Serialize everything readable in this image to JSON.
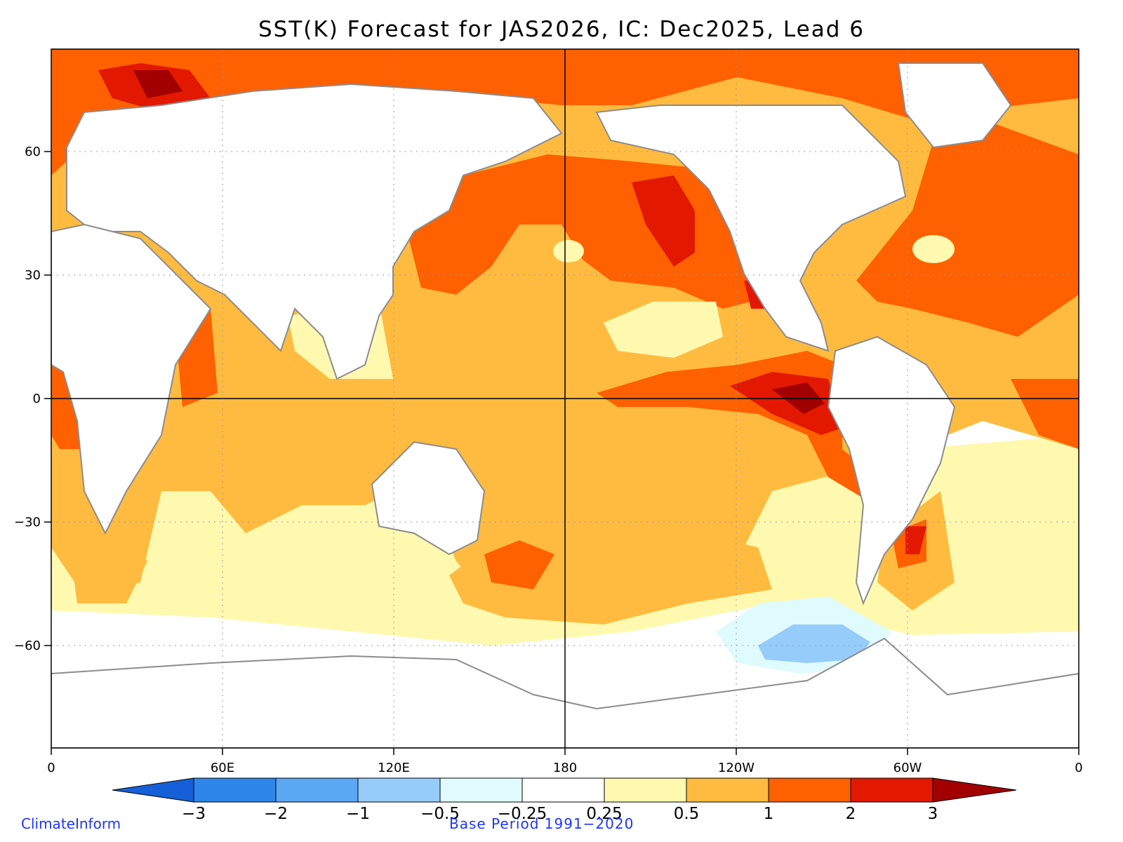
{
  "title": "SST(K) Forecast for JAS2026, IC: Dec2025, Lead 6",
  "credits": {
    "left": "ClimateInform",
    "center": "Base Period 1991−2020"
  },
  "axes": {
    "x_ticks": [
      "0",
      "60E",
      "120E",
      "180",
      "120W",
      "60W",
      "0"
    ],
    "y_ticks": [
      "60",
      "30",
      "0",
      "−30",
      "−60"
    ]
  },
  "colorbar": {
    "levels": [
      "−3",
      "−2",
      "−1",
      "−0.5",
      "−0.25",
      "0.25",
      "0.5",
      "1",
      "2",
      "3"
    ],
    "colors": [
      "#1560d8",
      "#2e86ea",
      "#5aa7f4",
      "#96ccfa",
      "#e0fbfe",
      "#ffffff",
      "#fff9b0",
      "#ffbb40",
      "#ff6000",
      "#e21800",
      "#a20000"
    ]
  },
  "colors": {
    "land": "#ffffff",
    "coast": "#8c8c8c",
    "lakes": "#000000"
  }
}
